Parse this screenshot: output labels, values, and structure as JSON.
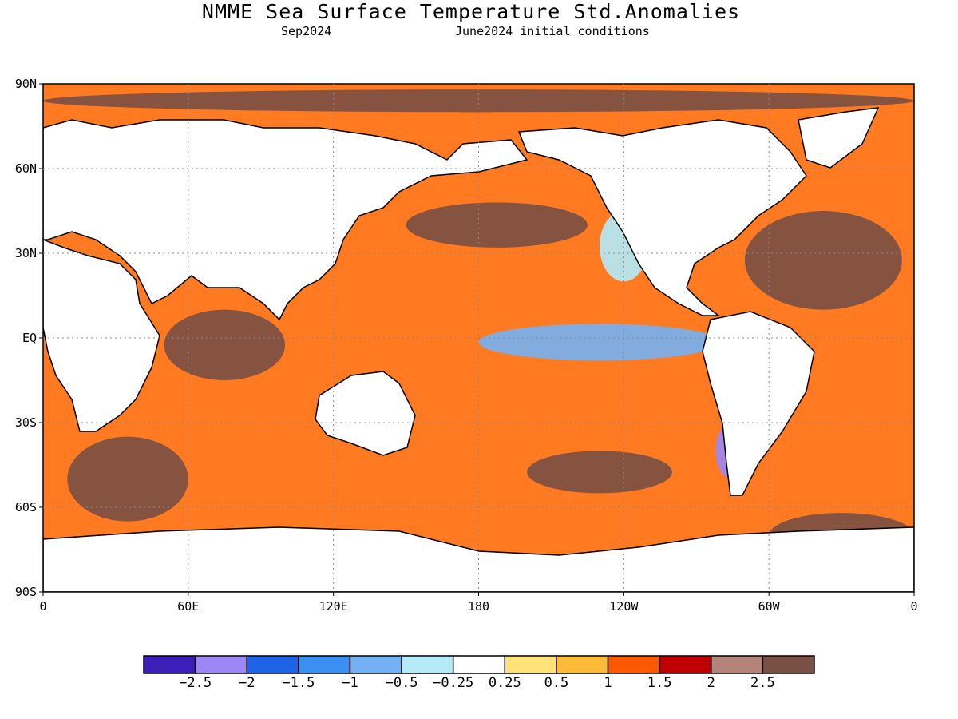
{
  "title": "NMME Sea Surface Temperature Std.Anomalies",
  "subtitle_left": "Sep2024",
  "subtitle_right": "June2024 initial conditions",
  "lat_labels": [
    "90N",
    "60N",
    "30N",
    "EQ",
    "30S",
    "60S",
    "90S"
  ],
  "lon_labels": [
    "0",
    "60E",
    "120E",
    "180",
    "120W",
    "60W",
    "0"
  ],
  "colorbar": {
    "colors": [
      "#3b1fb8",
      "#9b87f5",
      "#1e62e6",
      "#3a8ff0",
      "#74b1f2",
      "#b3ebf8",
      "#ffffff",
      "#ffe27a",
      "#ffba3a",
      "#ff5a00",
      "#c00000",
      "#b3847a",
      "#7a4f45"
    ],
    "labels": [
      "-2.5",
      "-2",
      "-1.5",
      "-1",
      "-0.5",
      "-0.25",
      "0.25",
      "0.5",
      "1",
      "1.5",
      "2",
      "2.5"
    ]
  },
  "map": {
    "extent": {
      "lon_min": 0,
      "lon_max": 360,
      "lat_min": -90,
      "lat_max": 90
    },
    "anomaly_regions": [
      {
        "name": "arctic-warm-north",
        "level": 12,
        "lon": [
          0,
          360
        ],
        "lat": [
          80,
          88
        ]
      },
      {
        "name": "north-pacific-warm",
        "level": 12,
        "lon": [
          150,
          225
        ],
        "lat": [
          32,
          48
        ]
      },
      {
        "name": "north-atlantic-warm",
        "level": 12,
        "lon": [
          290,
          355
        ],
        "lat": [
          10,
          45
        ]
      },
      {
        "name": "indian-ocean-warm",
        "level": 12,
        "lon": [
          50,
          100
        ],
        "lat": [
          -15,
          10
        ]
      },
      {
        "name": "south-indian-warm",
        "level": 12,
        "lon": [
          10,
          60
        ],
        "lat": [
          -65,
          -35
        ]
      },
      {
        "name": "south-pacific-warm",
        "level": 12,
        "lon": [
          200,
          260
        ],
        "lat": [
          -55,
          -40
        ]
      },
      {
        "name": "antarctic-warm-east",
        "level": 12,
        "lon": [
          300,
          360
        ],
        "lat": [
          -78,
          -62
        ]
      },
      {
        "name": "east-pacific-cold-tongue",
        "level": 4,
        "lon": [
          180,
          280
        ],
        "lat": [
          -8,
          5
        ]
      },
      {
        "name": "peru-chile-cold",
        "level": 1,
        "lon": [
          278,
          292
        ],
        "lat": [
          -50,
          -30
        ]
      },
      {
        "name": "ne-pacific-cold",
        "level": 5,
        "lon": [
          230,
          250
        ],
        "lat": [
          20,
          45
        ]
      }
    ]
  }
}
